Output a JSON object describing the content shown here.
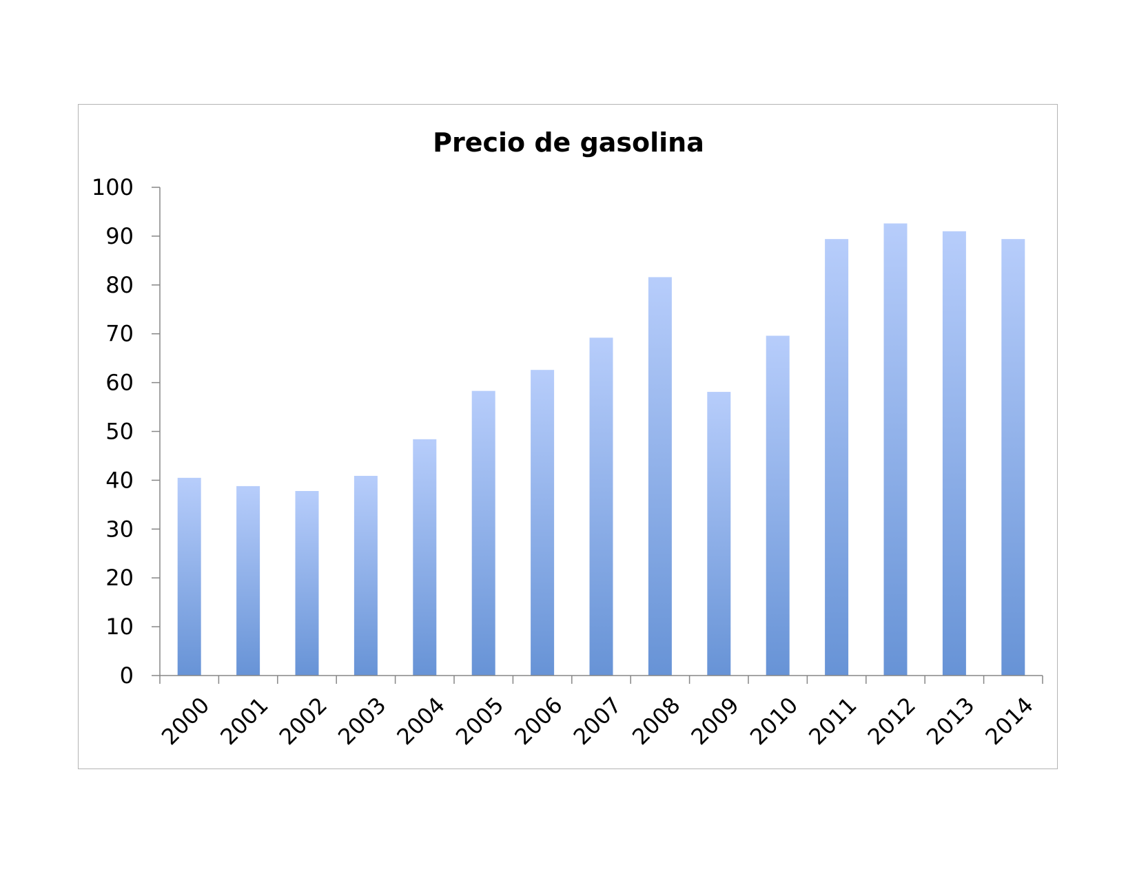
{
  "chart_data": {
    "type": "bar",
    "title": "Precio de gasolina",
    "xlabel": "",
    "ylabel": "",
    "categories": [
      "2000",
      "2001",
      "2002",
      "2003",
      "2004",
      "2005",
      "2006",
      "2007",
      "2008",
      "2009",
      "2010",
      "2011",
      "2012",
      "2013",
      "2014"
    ],
    "values": [
      40.5,
      38.8,
      37.8,
      40.9,
      48.4,
      58.3,
      62.6,
      69.2,
      81.6,
      58.1,
      69.6,
      89.4,
      92.6,
      91.0,
      89.4
    ],
    "ylim": [
      0,
      100
    ],
    "yticks": [
      "0",
      "10",
      "20",
      "30",
      "40",
      "50",
      "60",
      "70",
      "80",
      "90",
      "100"
    ],
    "grid": false,
    "legend": "none",
    "colors": {
      "bar_top": "#b7cdfb",
      "bar_bottom": "#6793d6",
      "axis": "#868686",
      "frame": "#b3b3b3"
    }
  }
}
